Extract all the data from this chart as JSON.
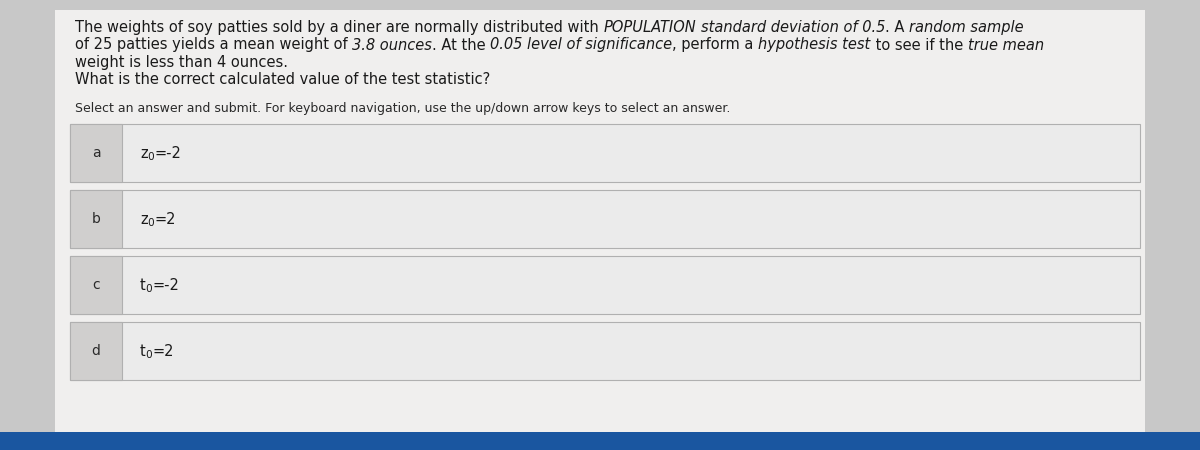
{
  "bg_color": "#c8c8c8",
  "content_bg": "#f0efee",
  "box_bg": "#ebebeb",
  "box_border": "#b0b0b0",
  "label_bg": "#d0cfce",
  "text_color": "#1a1a1a",
  "label_color": "#2a2a2a",
  "instr_color": "#2a2a2a",
  "blue_bar_color": "#1a56a0",
  "font_size_para": 10.5,
  "font_size_instruction": 9.0,
  "font_size_options": 10.5,
  "font_size_label": 10.0,
  "para_line1_normal": "The weights of soy patties sold by a diner are normally distributed with ",
  "para_line1_italic1": "POPULATION",
  "para_line1_mid1": " ",
  "para_line1_italic2": "standard deviation of 0.5",
  "para_line1_mid2": ". A ",
  "para_line1_italic3": "random sample",
  "para_line2_normal1": "of 25 patties yields a mean weight of ",
  "para_line2_italic1": "3.8 ounces",
  "para_line2_mid1": ". At the ",
  "para_line2_italic2": "0.05 level of significance",
  "para_line2_mid2": ", perform a ",
  "para_line2_italic3": "hypothesis test",
  "para_line2_mid3": " to see if the ",
  "para_line2_italic4": "true mean",
  "para_line3": "weight is less than 4 ounces.",
  "para_line4": "What is the correct calculated value of the test statistic?",
  "instruction_text": "Select an answer and submit. For keyboard navigation, use the up/down arrow keys to select an answer.",
  "options": [
    {
      "label": "a",
      "display": "z_0=-2"
    },
    {
      "label": "b",
      "display": "z_0=2"
    },
    {
      "label": "c",
      "display": "t_0=-2"
    },
    {
      "label": "d",
      "display": "t_0=2"
    }
  ]
}
